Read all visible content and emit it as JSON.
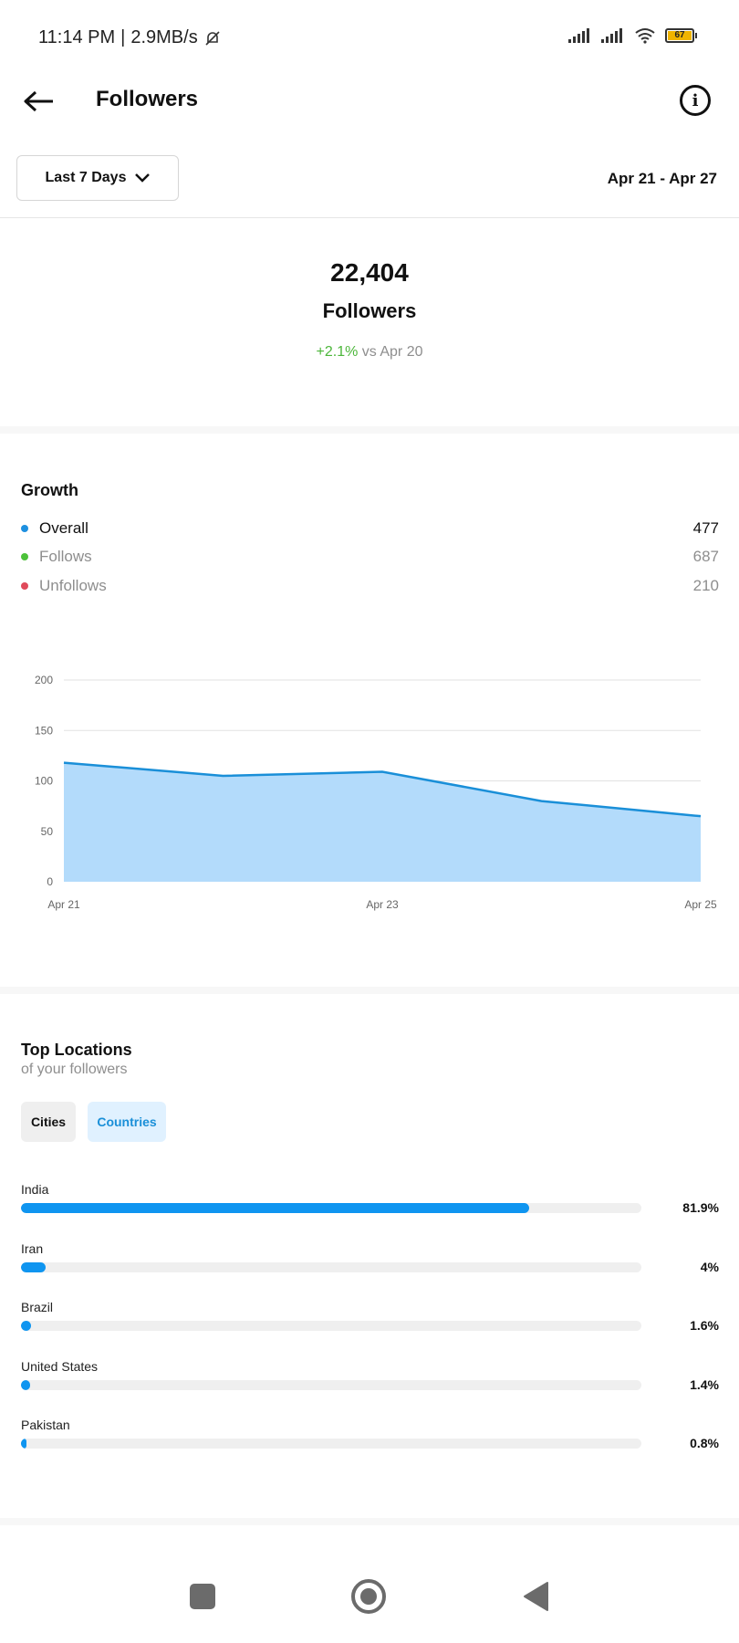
{
  "status_bar": {
    "time": "11:14 PM",
    "network_speed": "2.9MB/s",
    "battery": "67"
  },
  "header": {
    "title": "Followers",
    "back_icon": "arrow-left-icon",
    "info_icon": "info-icon"
  },
  "filter": {
    "range_label": "Last 7 Days",
    "date_range": "Apr 21 - Apr 27"
  },
  "summary": {
    "count": "22,404",
    "label": "Followers",
    "change": "+2.1%",
    "comparison": "vs Apr 20"
  },
  "growth": {
    "title": "Growth",
    "legend": [
      {
        "name": "Overall",
        "value": "477",
        "color": "#1e90e0",
        "text_color": "#111111"
      },
      {
        "name": "Follows",
        "value": "687",
        "color": "#4cc23a",
        "text_color": "#8e8e8e"
      },
      {
        "name": "Unfollows",
        "value": "210",
        "color": "#e04a5a",
        "text_color": "#8e8e8e"
      }
    ]
  },
  "chart_data": {
    "type": "area",
    "x": [
      "Apr 21",
      "Apr 22",
      "Apr 23",
      "Apr 24",
      "Apr 25"
    ],
    "x_tick_labels": [
      "Apr 21",
      "Apr 23",
      "Apr 25"
    ],
    "series": [
      {
        "values": [
          118,
          105,
          109,
          80,
          65
        ]
      }
    ],
    "y_ticks": [
      0,
      50,
      100,
      150,
      200
    ],
    "ylim": [
      0,
      200
    ],
    "grid": true,
    "line_color": "#1a8fd8",
    "fill_color": "#b3dbfb"
  },
  "locations": {
    "title": "Top Locations",
    "subtitle": "of your followers",
    "tabs": {
      "cities": "Cities",
      "countries": "Countries"
    },
    "items": [
      {
        "name": "India",
        "pct_label": "81.9%",
        "pct": 81.9
      },
      {
        "name": "Iran",
        "pct_label": "4%",
        "pct": 4
      },
      {
        "name": "Brazil",
        "pct_label": "1.6%",
        "pct": 1.6
      },
      {
        "name": "United States",
        "pct_label": "1.4%",
        "pct": 1.4
      },
      {
        "name": "Pakistan",
        "pct_label": "0.8%",
        "pct": 0.8
      }
    ]
  },
  "nav_bar": {
    "recents_icon": "square-icon",
    "home_icon": "circle-home-icon",
    "back_icon": "triangle-back-icon"
  }
}
